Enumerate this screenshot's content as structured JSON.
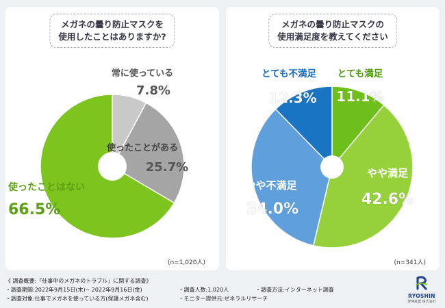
{
  "chart_data": [
    {
      "type": "pie",
      "title_lines": [
        "メガネの曇り防止マスクを",
        "使用したことはありますか?"
      ],
      "note": "(n=1,020人)",
      "slices": [
        {
          "label": "常に使っている",
          "value": 7.8,
          "value_text": "7.8%",
          "color": "#c9c9c9"
        },
        {
          "label": "使ったことがある",
          "value": 25.7,
          "value_text": "25.7%",
          "color": "#a5a5a5"
        },
        {
          "label": "使ったことはない",
          "value": 66.5,
          "value_text": "66.5%",
          "color": "#7dc41e"
        }
      ]
    },
    {
      "type": "pie",
      "title_lines": [
        "メガネの曇り防止マスクの",
        "使用満足度を教えてください"
      ],
      "note": "(n=341人)",
      "slices": [
        {
          "label": "とても満足",
          "value": 11.1,
          "value_text": "11.1%",
          "color": "#6fbf1c"
        },
        {
          "label": "やや満足",
          "value": 42.6,
          "value_text": "42.6%",
          "color": "#96d13c"
        },
        {
          "label": "やや不満足",
          "value": 34.0,
          "value_text": "34.0%",
          "color": "#5fa0dc"
        },
        {
          "label": "とても不満足",
          "value": 12.3,
          "value_text": "12.3%",
          "color": "#1a74c4"
        }
      ]
    }
  ],
  "footer": {
    "overview": "《 調査概要:「仕事中のメガネのトラブル」に関する調査》",
    "period": "・調査期間:2022年9月15日(木)~ 2022年9月16日(金)",
    "count": "・調査人数:1,020人",
    "method": "・調査方法:インターネット調査",
    "target": "・調査対象:仕事でメガネを使っている方(保護メガネ含む)",
    "provider": "・モニター提供元:ゼネラルリサーチ"
  },
  "logo": {
    "name": "RYOSHIN",
    "sub": "菱伸産業 株式会社",
    "colors": {
      "primary": "#1c3c8c",
      "accent": "#7dc41e"
    }
  }
}
